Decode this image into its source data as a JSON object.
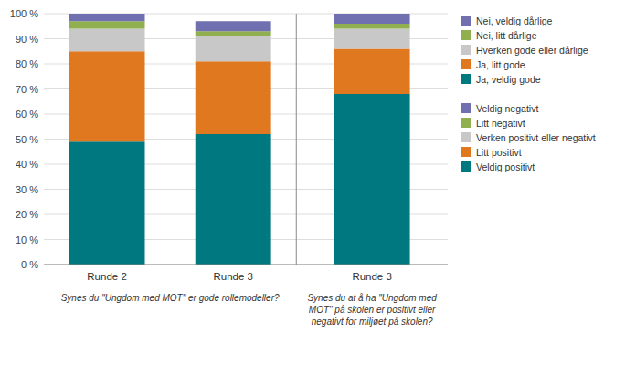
{
  "chart_data": [
    {
      "type": "bar",
      "stacked": true,
      "grid": true,
      "categories": [
        "Runde 2",
        "Runde 3"
      ],
      "series": [
        {
          "name": "Ja, veldig gode",
          "color": "#007880",
          "values": [
            49,
            52
          ]
        },
        {
          "name": "Ja, litt gode",
          "color": "#E07820",
          "values": [
            36,
            29
          ]
        },
        {
          "name": "Hverken gode eller dårlige",
          "color": "#C8C8C8",
          "values": [
            9,
            10
          ]
        },
        {
          "name": "Nei, litt dårlige",
          "color": "#90B050",
          "values": [
            3,
            2
          ]
        },
        {
          "name": "Nei, veldig dårlige",
          "color": "#7070B0",
          "values": [
            3,
            4
          ]
        }
      ],
      "annotations": [
        "Synes du \"Ungdom med MOT\" er gode rollemodeller?"
      ],
      "ylim": [
        0,
        100
      ],
      "yticks": [
        {
          "value": 0,
          "label": "0 %"
        },
        {
          "value": 10,
          "label": "10 %"
        },
        {
          "value": 20,
          "label": "20 %"
        },
        {
          "value": 30,
          "label": "30 %"
        },
        {
          "value": 40,
          "label": "40 %"
        },
        {
          "value": 50,
          "label": "50 %"
        },
        {
          "value": 60,
          "label": "60 %"
        },
        {
          "value": 70,
          "label": "70 %"
        },
        {
          "value": 80,
          "label": "80 %"
        },
        {
          "value": 90,
          "label": "90 %"
        },
        {
          "value": 100,
          "label": "100 %"
        }
      ]
    },
    {
      "type": "bar",
      "stacked": true,
      "tick_labels": "x",
      "categories": [
        "Runde 3"
      ],
      "series": [
        {
          "name": "Veldig positivt",
          "color": "#007880",
          "values": [
            68
          ]
        },
        {
          "name": "Litt positivt",
          "color": "#E07820",
          "values": [
            18
          ]
        },
        {
          "name": "Verken positivt eller negativt",
          "color": "#C8C8C8",
          "values": [
            8
          ]
        },
        {
          "name": "Litt negativt",
          "color": "#90B050",
          "values": [
            2
          ]
        },
        {
          "name": "Veldig negativt",
          "color": "#7070B0",
          "values": [
            4
          ]
        }
      ],
      "annotations": [
        "Synes du at å ha \"Ungdom med\nMOT\" på skolen er positivt eller\nnegativt for miljøet på skolen?"
      ],
      "ylim": [
        0,
        100
      ]
    }
  ]
}
